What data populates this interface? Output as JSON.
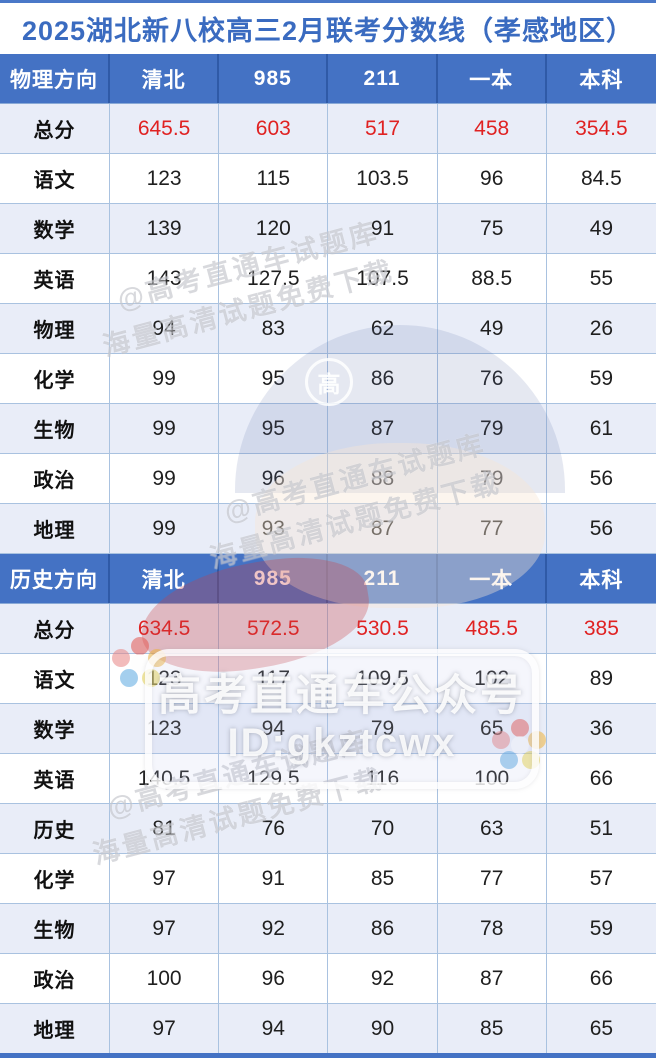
{
  "title": "2025湖北新八校高三2月联考分数线（孝感地区）",
  "columns": [
    "清北",
    "985",
    "211",
    "一本",
    "本科"
  ],
  "sections": [
    {
      "name": "物理方向",
      "rows": [
        {
          "label": "总分",
          "highlight": true,
          "values": [
            "645.5",
            "603",
            "517",
            "458",
            "354.5"
          ]
        },
        {
          "label": "语文",
          "highlight": false,
          "values": [
            "123",
            "115",
            "103.5",
            "96",
            "84.5"
          ]
        },
        {
          "label": "数学",
          "highlight": false,
          "values": [
            "139",
            "120",
            "91",
            "75",
            "49"
          ]
        },
        {
          "label": "英语",
          "highlight": false,
          "values": [
            "143",
            "127.5",
            "107.5",
            "88.5",
            "55"
          ]
        },
        {
          "label": "物理",
          "highlight": false,
          "values": [
            "94",
            "83",
            "62",
            "49",
            "26"
          ]
        },
        {
          "label": "化学",
          "highlight": false,
          "values": [
            "99",
            "95",
            "86",
            "76",
            "59"
          ]
        },
        {
          "label": "生物",
          "highlight": false,
          "values": [
            "99",
            "95",
            "87",
            "79",
            "61"
          ]
        },
        {
          "label": "政治",
          "highlight": false,
          "values": [
            "99",
            "96",
            "88",
            "79",
            "56"
          ]
        },
        {
          "label": "地理",
          "highlight": false,
          "values": [
            "99",
            "93",
            "87",
            "77",
            "56"
          ]
        }
      ]
    },
    {
      "name": "历史方向",
      "rows": [
        {
          "label": "总分",
          "highlight": true,
          "values": [
            "634.5",
            "572.5",
            "530.5",
            "485.5",
            "385"
          ]
        },
        {
          "label": "语文",
          "highlight": false,
          "values": [
            "123",
            "117",
            "109.5",
            "102",
            "89"
          ]
        },
        {
          "label": "数学",
          "highlight": false,
          "values": [
            "123",
            "94",
            "79",
            "65",
            "36"
          ]
        },
        {
          "label": "英语",
          "highlight": false,
          "values": [
            "140.5",
            "129.5",
            "116",
            "100",
            "66"
          ]
        },
        {
          "label": "历史",
          "highlight": false,
          "values": [
            "81",
            "76",
            "70",
            "63",
            "51"
          ]
        },
        {
          "label": "化学",
          "highlight": false,
          "values": [
            "97",
            "91",
            "85",
            "77",
            "57"
          ]
        },
        {
          "label": "生物",
          "highlight": false,
          "values": [
            "97",
            "92",
            "86",
            "78",
            "59"
          ]
        },
        {
          "label": "政治",
          "highlight": false,
          "values": [
            "100",
            "96",
            "92",
            "87",
            "66"
          ]
        },
        {
          "label": "地理",
          "highlight": false,
          "values": [
            "97",
            "94",
            "90",
            "85",
            "65"
          ]
        }
      ]
    }
  ],
  "watermarks": {
    "diagonal_line1": "@高考直通车试题库",
    "diagonal_line2": "海量高清试题免费下载",
    "badge_char": "高",
    "frame_line1": "高考直通车公众号",
    "frame_line2": "ID:gkztcwx"
  },
  "colors": {
    "header_bg": "#4472c4",
    "header_separator": "#2f5aa7",
    "header_text": "#ffffff",
    "row_alt_bg": "#e9edf8",
    "grid_line": "#a9c2e0",
    "title_text": "#3a6bc0",
    "highlight_red": "#e02222",
    "bottom_bar": "#4472c4"
  }
}
